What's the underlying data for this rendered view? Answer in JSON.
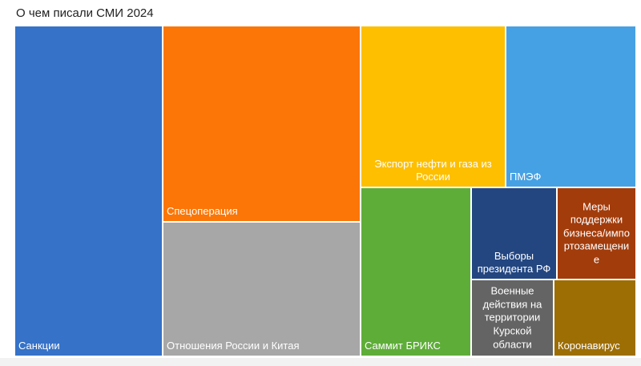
{
  "chart_data": {
    "type": "treemap",
    "title": "О чем писали СМИ 2024",
    "items": [
      {
        "label": "Санкции",
        "value": 25.7,
        "color": "#3572c8"
      },
      {
        "label": "Спецоперация",
        "value": 16.1,
        "color": "#fb7606"
      },
      {
        "label": "Отношения России и Китая",
        "value": 11.7,
        "color": "#a7a7a7"
      },
      {
        "label": "Экспорт нефти и газа из России",
        "value": 8.9,
        "color": "#febf00"
      },
      {
        "label": "ПМЭФ",
        "value": 7.8,
        "color": "#46a1e4"
      },
      {
        "label": "Саммит БРИКС",
        "value": 7.5,
        "color": "#5ead38"
      },
      {
        "label": "Выборы президента РФ",
        "value": 3.6,
        "color": "#234681"
      },
      {
        "label": "Меры поддержки бизнеса/импортозамещение",
        "value": 3.6,
        "color": "#a23c0b"
      },
      {
        "label": "Военные действия на территории Курской области",
        "value": 3.4,
        "color": "#646464"
      },
      {
        "label": "Коронавирус",
        "value": 3.6,
        "color": "#9d6e04"
      }
    ]
  }
}
